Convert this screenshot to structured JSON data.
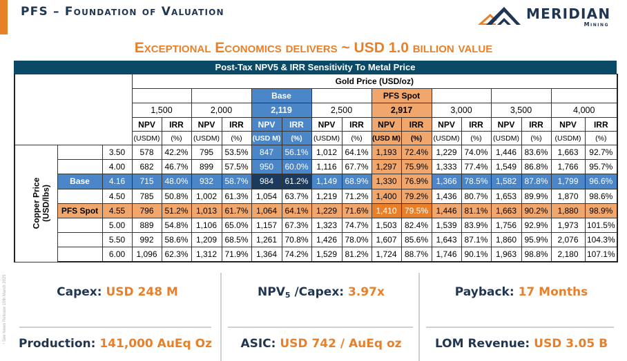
{
  "slide": {
    "title": "PFS – Foundation of Valuation",
    "headline": "Exceptional Economics delivers ~ USD 1.0 billion value",
    "side_note": "¹ See News Release 10th March 2025"
  },
  "logo": {
    "name": "MERIDIAN",
    "sub": "Mining",
    "icon": "mountain-peaks-icon",
    "colors": {
      "navy": "#1f3552",
      "orange": "#e8802a"
    }
  },
  "table": {
    "title": "Post-Tax NPV5 & IRR Sensitivity To Metal Price",
    "col_axis_label": "Gold Price (USD/oz)",
    "row_axis_label_line1": "Copper Price",
    "row_axis_label_line2": "(USD/lbs)",
    "npv_label": "NPV",
    "irr_label": "IRR",
    "gold_columns": [
      {
        "tag": "",
        "price": "1,500",
        "npv_unit": "(USDM)",
        "irr_unit": "(%)"
      },
      {
        "tag": "",
        "price": "2,000",
        "npv_unit": "(USDM)",
        "irr_unit": "(%)"
      },
      {
        "tag": "Base",
        "price": "2,119",
        "npv_unit": "(USD M)",
        "irr_unit": "(%)"
      },
      {
        "tag": "",
        "price": "2,500",
        "npv_unit": "(USDM)",
        "irr_unit": "(%)"
      },
      {
        "tag": "PFS Spot",
        "price": "2,917",
        "npv_unit": "(USD M)",
        "irr_unit": "(%)"
      },
      {
        "tag": "",
        "price": "3,000",
        "npv_unit": "(USDM)",
        "irr_unit": "(%)"
      },
      {
        "tag": "",
        "price": "3,500",
        "npv_unit": "(USDM)",
        "irr_unit": "(%)"
      },
      {
        "tag": "",
        "price": "4,000",
        "npv_unit": "(USDM)",
        "irr_unit": "(%)"
      }
    ],
    "rows": [
      {
        "tag": "",
        "copper": "3.50",
        "cells": [
          [
            "578",
            "42.2%"
          ],
          [
            "795",
            "53.5%"
          ],
          [
            "847",
            "56.1%"
          ],
          [
            "1,012",
            "64.1%"
          ],
          [
            "1,193",
            "72.4%"
          ],
          [
            "1,229",
            "74.0%"
          ],
          [
            "1,446",
            "83.6%"
          ],
          [
            "1,663",
            "92.7%"
          ]
        ]
      },
      {
        "tag": "",
        "copper": "4.00",
        "cells": [
          [
            "682",
            "46.7%"
          ],
          [
            "899",
            "57.5%"
          ],
          [
            "950",
            "60.0%"
          ],
          [
            "1,116",
            "67.7%"
          ],
          [
            "1,297",
            "75.9%"
          ],
          [
            "1,333",
            "77.4%"
          ],
          [
            "1,549",
            "86.8%"
          ],
          [
            "1,766",
            "95.7%"
          ]
        ]
      },
      {
        "tag": "Base",
        "copper": "4.16",
        "cells": [
          [
            "715",
            "48.0%"
          ],
          [
            "932",
            "58.7%"
          ],
          [
            "984",
            "61.2%"
          ],
          [
            "1,149",
            "68.9%"
          ],
          [
            "1,330",
            "76.9%"
          ],
          [
            "1,366",
            "78.5%"
          ],
          [
            "1,582",
            "87.8%"
          ],
          [
            "1,799",
            "96.6%"
          ]
        ]
      },
      {
        "tag": "",
        "copper": "4.50",
        "cells": [
          [
            "785",
            "50.8%"
          ],
          [
            "1,002",
            "61.3%"
          ],
          [
            "1,054",
            "63.7%"
          ],
          [
            "1,219",
            "71.2%"
          ],
          [
            "1,400",
            "79.2%"
          ],
          [
            "1,436",
            "80.7%"
          ],
          [
            "1,653",
            "89.9%"
          ],
          [
            "1,870",
            "98.6%"
          ]
        ]
      },
      {
        "tag": "PFS Spot",
        "copper": "4.55",
        "cells": [
          [
            "796",
            "51.2%"
          ],
          [
            "1,013",
            "61.7%"
          ],
          [
            "1,064",
            "64.1%"
          ],
          [
            "1,229",
            "71.6%"
          ],
          [
            "1,410",
            "79.5%"
          ],
          [
            "1,446",
            "81.1%"
          ],
          [
            "1,663",
            "90.2%"
          ],
          [
            "1,880",
            "98.9%"
          ]
        ]
      },
      {
        "tag": "",
        "copper": "5.00",
        "cells": [
          [
            "889",
            "54.8%"
          ],
          [
            "1,106",
            "65.0%"
          ],
          [
            "1,157",
            "67.3%"
          ],
          [
            "1,323",
            "74.7%"
          ],
          [
            "1,503",
            "82.4%"
          ],
          [
            "1,539",
            "83.9%"
          ],
          [
            "1,756",
            "92.9%"
          ],
          [
            "1,973",
            "101.5%"
          ]
        ]
      },
      {
        "tag": "",
        "copper": "5.50",
        "cells": [
          [
            "992",
            "58.6%"
          ],
          [
            "1,209",
            "68.5%"
          ],
          [
            "1,261",
            "70.8%"
          ],
          [
            "1,426",
            "78.0%"
          ],
          [
            "1,607",
            "85.6%"
          ],
          [
            "1,643",
            "87.1%"
          ],
          [
            "1,860",
            "95.9%"
          ],
          [
            "2,076",
            "104.3%"
          ]
        ]
      },
      {
        "tag": "",
        "copper": "6.00",
        "cells": [
          [
            "1,096",
            "62.3%"
          ],
          [
            "1,312",
            "71.9%"
          ],
          [
            "1,364",
            "74.2%"
          ],
          [
            "1,529",
            "81.2%"
          ],
          [
            "1,724",
            "88.7%"
          ],
          [
            "1,746",
            "90.1%"
          ],
          [
            "1,963",
            "98.8%"
          ],
          [
            "2,180",
            "107.1%"
          ]
        ]
      }
    ],
    "highlight": {
      "base_gold_col": 2,
      "spot_gold_col": 4,
      "base_row": 2,
      "spot_row": 4,
      "colors": {
        "base": "#4a86c8",
        "base_intersection": "#1c3a5e",
        "spot": "#f1a66b",
        "spot_intersection": "#e8802a",
        "title_bar": "#0b4a66"
      }
    }
  },
  "stats": [
    {
      "label": "Capex: ",
      "value": "USD 248 M"
    },
    {
      "label_pre": "NPV",
      "label_sub": "5",
      "label_post": " /Capex: ",
      "value": "3.97x"
    },
    {
      "label": "Payback: ",
      "value": "17 Months"
    },
    {
      "label": "Production: ",
      "value": "141,000 AuEq Oz"
    },
    {
      "label": "ASIC: ",
      "value": "USD 742 / AuEq oz"
    },
    {
      "label": "LOM Revenue: ",
      "value": "USD 3.05 B"
    }
  ]
}
